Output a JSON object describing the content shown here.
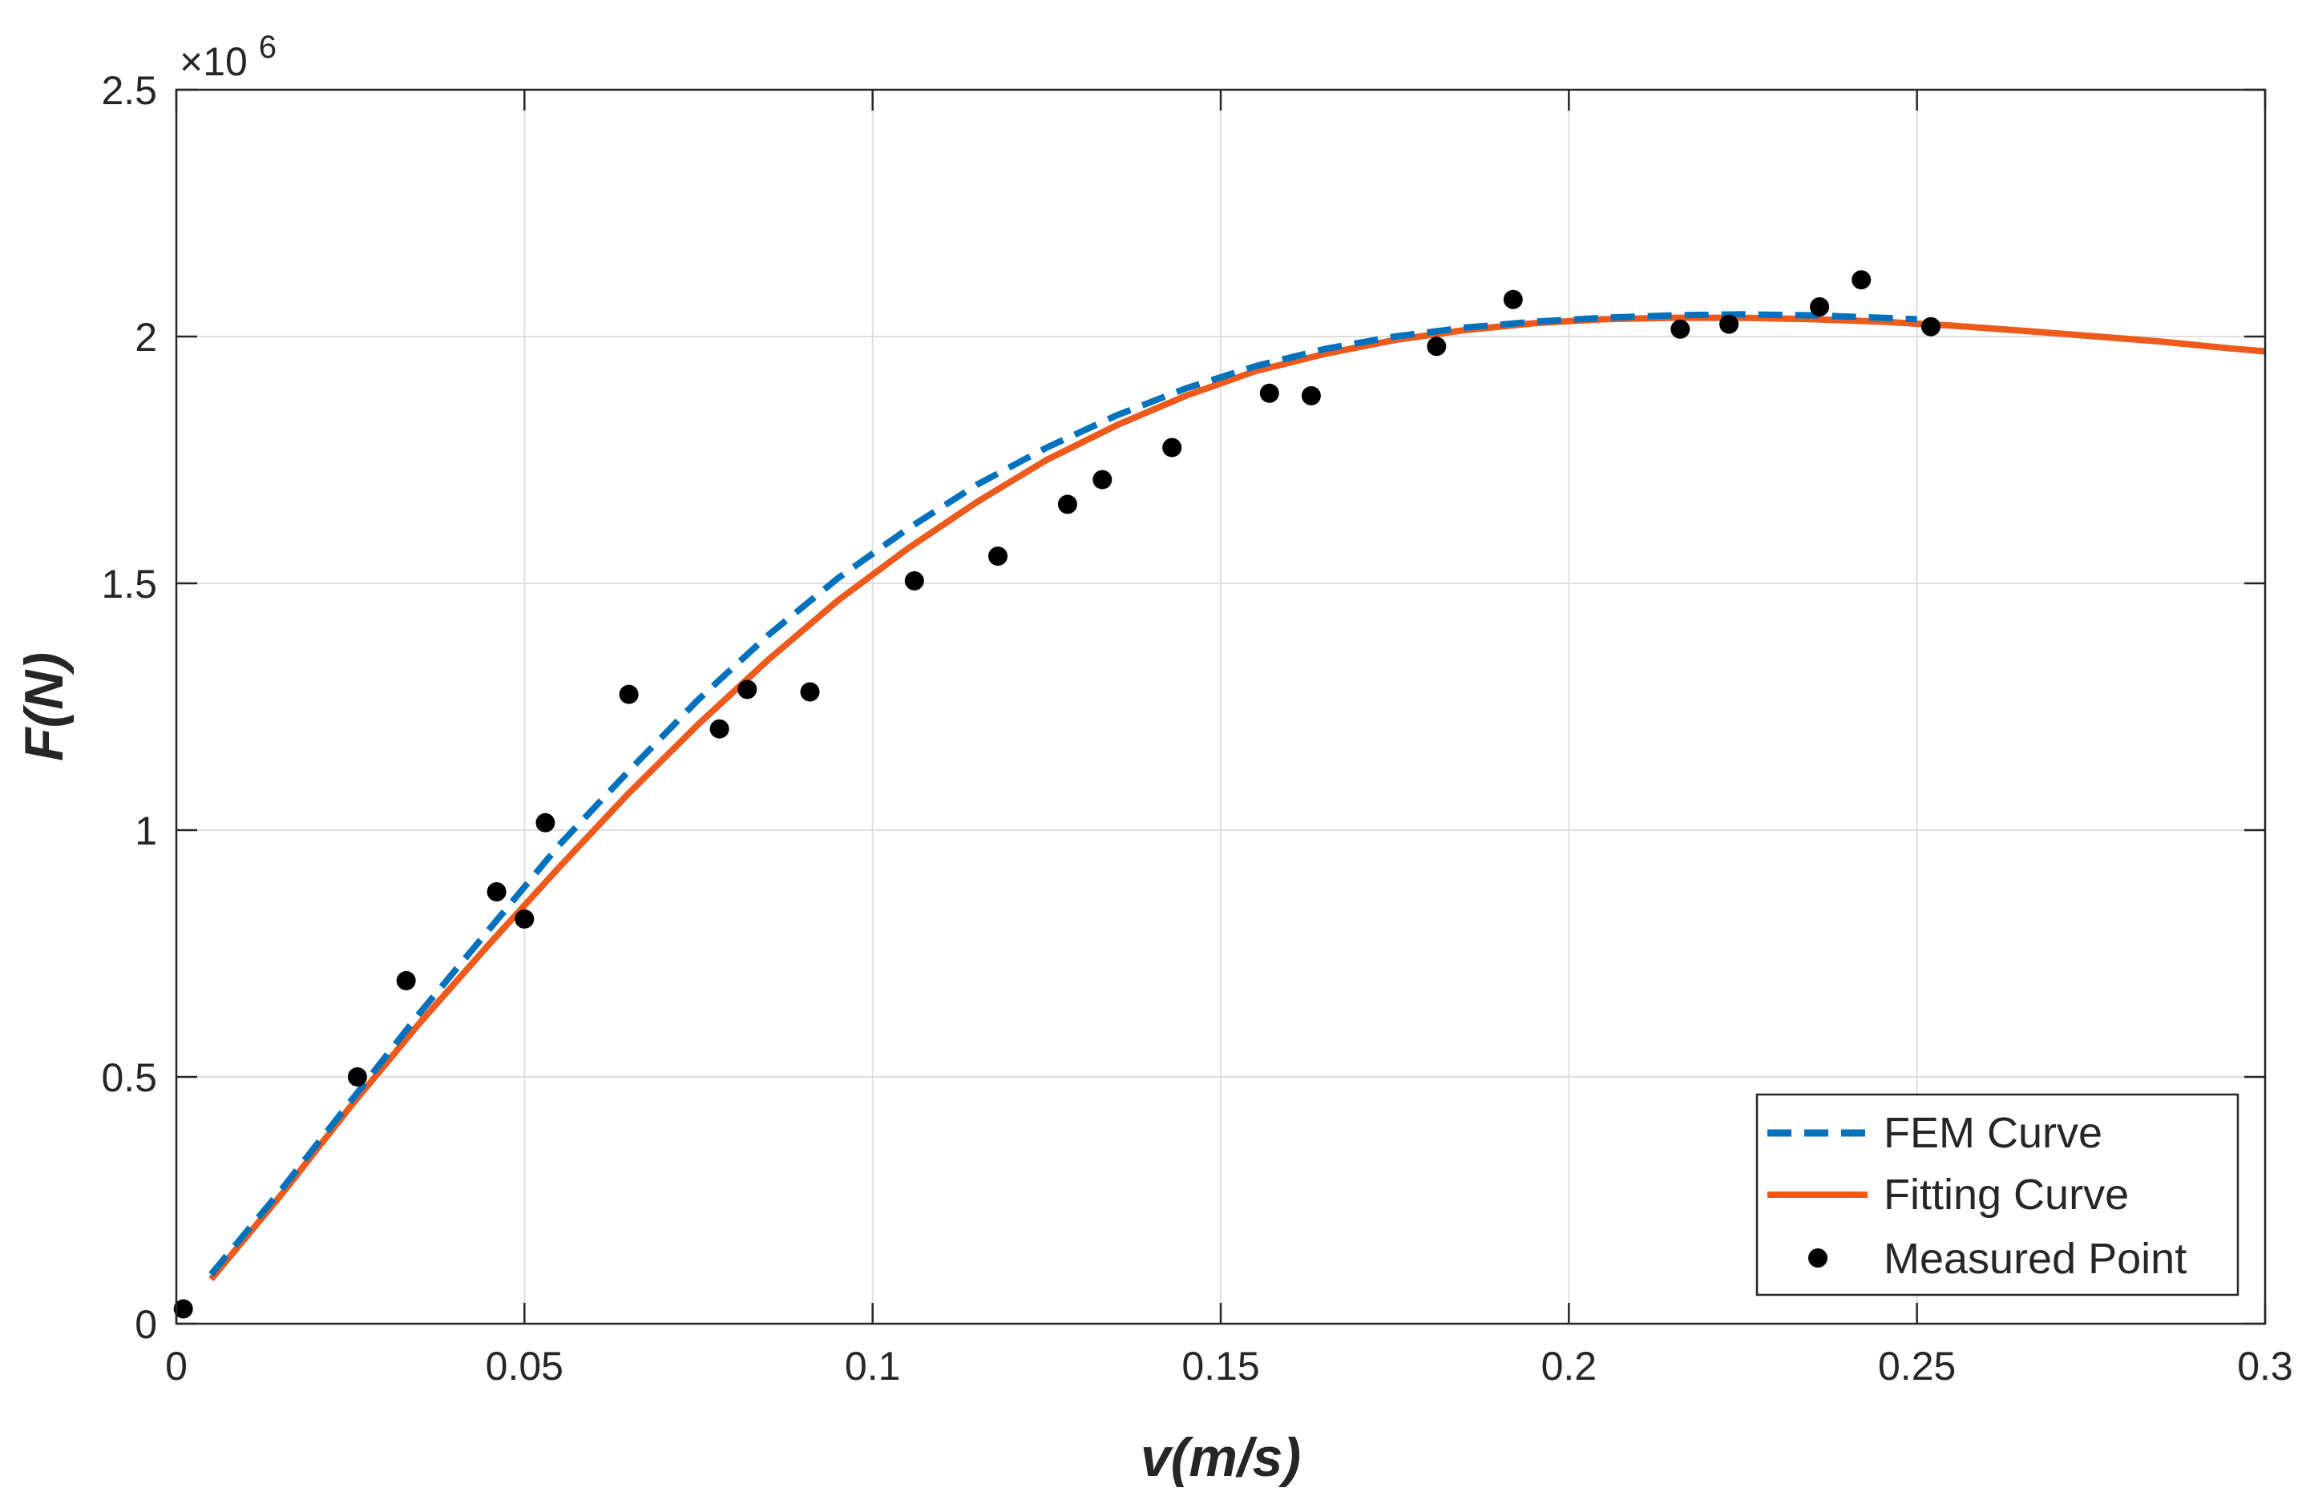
{
  "chart_data": {
    "type": "line",
    "title": "",
    "xlabel": "v(m/s)",
    "ylabel": "F(N)",
    "xlim": [
      0,
      0.3
    ],
    "ylim": [
      0,
      2500000
    ],
    "y_multiplier_label": "×10",
    "y_multiplier_exponent": "6",
    "grid": true,
    "legend_location": "bottom-right",
    "x_ticks": [
      {
        "value": 0,
        "label": "0"
      },
      {
        "value": 0.05,
        "label": "0.05"
      },
      {
        "value": 0.1,
        "label": "0.1"
      },
      {
        "value": 0.15,
        "label": "0.15"
      },
      {
        "value": 0.2,
        "label": "0.2"
      },
      {
        "value": 0.25,
        "label": "0.25"
      },
      {
        "value": 0.3,
        "label": "0.3"
      }
    ],
    "y_ticks": [
      {
        "value": 0,
        "label": "0"
      },
      {
        "value": 500000,
        "label": "0.5"
      },
      {
        "value": 1000000,
        "label": "1"
      },
      {
        "value": 1500000,
        "label": "1.5"
      },
      {
        "value": 2000000,
        "label": "2"
      },
      {
        "value": 2500000,
        "label": "2.5"
      }
    ],
    "series": [
      {
        "name": "FEM Curve",
        "style": "dashed",
        "color": "#0072BD",
        "x": [
          0.005,
          0.015,
          0.025,
          0.035,
          0.045,
          0.055,
          0.065,
          0.075,
          0.085,
          0.095,
          0.105,
          0.115,
          0.125,
          0.135,
          0.145,
          0.155,
          0.165,
          0.175,
          0.185,
          0.195,
          0.205,
          0.215,
          0.225,
          0.235,
          0.245,
          0.25
        ],
        "y": [
          100000,
          270000,
          450000,
          630000,
          800000,
          970000,
          1120000,
          1265000,
          1395000,
          1510000,
          1610000,
          1700000,
          1775000,
          1840000,
          1895000,
          1940000,
          1975000,
          2000000,
          2018000,
          2030000,
          2038000,
          2043000,
          2045000,
          2043000,
          2038000,
          2035000
        ]
      },
      {
        "name": "Fitting Curve",
        "style": "solid",
        "color": "#EE5A1C",
        "x": [
          0.005,
          0.015,
          0.025,
          0.035,
          0.045,
          0.055,
          0.065,
          0.075,
          0.085,
          0.095,
          0.105,
          0.115,
          0.125,
          0.135,
          0.145,
          0.155,
          0.165,
          0.175,
          0.185,
          0.195,
          0.205,
          0.215,
          0.225,
          0.235,
          0.245,
          0.255,
          0.265,
          0.275,
          0.285,
          0.295,
          0.3
        ],
        "y": [
          90000,
          260000,
          440000,
          610000,
          770000,
          925000,
          1075000,
          1215000,
          1345000,
          1465000,
          1570000,
          1665000,
          1750000,
          1820000,
          1880000,
          1930000,
          1965000,
          1993000,
          2013000,
          2027000,
          2035000,
          2038000,
          2038000,
          2035000,
          2030000,
          2022000,
          2012000,
          2001000,
          1990000,
          1976000,
          1970000
        ]
      },
      {
        "name": "Measured Point",
        "style": "markers",
        "color": "#000000",
        "x": [
          0.001,
          0.026,
          0.033,
          0.046,
          0.05,
          0.053,
          0.065,
          0.078,
          0.082,
          0.091,
          0.106,
          0.118,
          0.128,
          0.133,
          0.143,
          0.157,
          0.163,
          0.181,
          0.192,
          0.216,
          0.223,
          0.236,
          0.242,
          0.252
        ],
        "y": [
          30000,
          500000,
          695000,
          875000,
          820000,
          1015000,
          1275000,
          1205000,
          1285000,
          1280000,
          1505000,
          1555000,
          1660000,
          1710000,
          1775000,
          1885000,
          1880000,
          1980000,
          2075000,
          2015000,
          2025000,
          2060000,
          2115000,
          2020000
        ]
      }
    ]
  }
}
